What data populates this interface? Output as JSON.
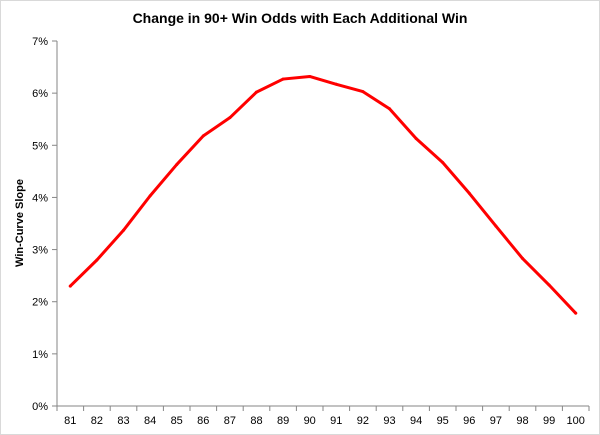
{
  "chart_data": {
    "type": "line",
    "title": "Change in 90+ Win Odds with Each Additional Win",
    "xlabel": "",
    "ylabel": "Win-Curve Slope",
    "x": [
      "81",
      "82",
      "83",
      "84",
      "85",
      "86",
      "87",
      "88",
      "89",
      "90",
      "91",
      "92",
      "93",
      "94",
      "95",
      "96",
      "97",
      "98",
      "99",
      "100"
    ],
    "series": [
      {
        "values": [
          0.023,
          0.028,
          0.0337,
          0.0403,
          0.0463,
          0.0518,
          0.0553,
          0.0602,
          0.0627,
          0.0632,
          0.0617,
          0.0603,
          0.057,
          0.0513,
          0.0467,
          0.0408,
          0.0345,
          0.0283,
          0.0232,
          0.0178
        ],
        "color": "#ff0000"
      }
    ],
    "ylim": [
      0,
      0.07
    ],
    "yticks": [
      {
        "value": 0,
        "label": "0%"
      },
      {
        "value": 0.01,
        "label": "1%"
      },
      {
        "value": 0.02,
        "label": "2%"
      },
      {
        "value": 0.03,
        "label": "3%"
      },
      {
        "value": 0.04,
        "label": "4%"
      },
      {
        "value": 0.05,
        "label": "5%"
      },
      {
        "value": 0.06,
        "label": "6%"
      },
      {
        "value": 0.07,
        "label": "7%"
      }
    ],
    "grid": false,
    "legend": "none"
  }
}
